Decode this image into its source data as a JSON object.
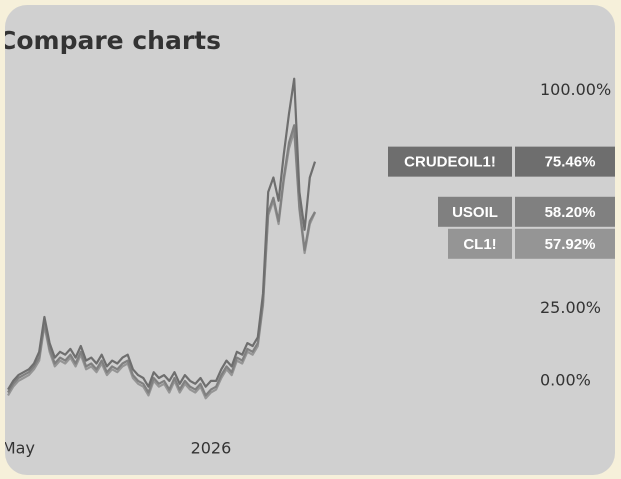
{
  "chart_data": {
    "type": "line",
    "title": "Compare charts",
    "x": [
      0,
      1,
      2,
      3,
      4,
      5,
      6,
      7,
      8,
      9,
      10,
      11,
      12,
      13,
      14,
      15,
      16,
      17,
      18,
      19,
      20,
      21,
      22,
      23,
      24,
      25,
      26,
      27,
      28,
      29,
      30,
      31,
      32,
      33,
      34,
      35,
      36,
      37,
      38,
      39,
      40,
      41,
      42,
      43,
      44,
      45,
      46,
      47,
      48,
      49,
      50,
      51,
      52,
      53,
      54,
      55,
      56,
      57,
      58,
      59
    ],
    "xticks": [
      {
        "value": 2,
        "label": "May"
      },
      {
        "value": 39,
        "label": "2026"
      }
    ],
    "xlim": [
      0,
      59
    ],
    "ylim": [
      -20,
      107
    ],
    "yticks": [
      {
        "value": 0,
        "label": "0.00%"
      },
      {
        "value": 25,
        "label": "25.00%"
      },
      {
        "value": 100,
        "label": "100.00%"
      }
    ],
    "series": [
      {
        "name": "CRUDEOIL1!",
        "color": "#6e6e6e",
        "values": [
          -3,
          0,
          2,
          3,
          4,
          6,
          10,
          22,
          13,
          8,
          10,
          9,
          11,
          8,
          12,
          7,
          8,
          6,
          9,
          5,
          7,
          6,
          8,
          9,
          4,
          2,
          1,
          -2,
          3,
          1,
          2,
          0,
          3,
          -1,
          2,
          0,
          -1,
          1,
          -2,
          0,
          0,
          4,
          7,
          5,
          10,
          9,
          13,
          12,
          15,
          30,
          65,
          70,
          62,
          78,
          92,
          104,
          65,
          52,
          70,
          75.46
        ],
        "value_labels": [
          null,
          null,
          null,
          null,
          null,
          null,
          null,
          null,
          null,
          null,
          null,
          null,
          null,
          null,
          null,
          null,
          null,
          null,
          null,
          null,
          null,
          null,
          null,
          null,
          null,
          null,
          null,
          null,
          null,
          null,
          null,
          null,
          null,
          null,
          null,
          null,
          null,
          null,
          null,
          null,
          null,
          null,
          null,
          null,
          null,
          null,
          null,
          null,
          null,
          null,
          null,
          null,
          null,
          null,
          null,
          null,
          null,
          null,
          null,
          "75.46%"
        ]
      },
      {
        "name": "USOIL",
        "color": "#808080",
        "values": [
          -4,
          -1,
          1,
          2,
          3,
          5,
          8,
          20,
          11,
          6,
          8,
          7,
          9,
          6,
          10,
          5,
          6,
          4,
          7,
          3,
          5,
          4,
          6,
          7,
          2,
          0,
          -1,
          -4,
          1,
          -1,
          0,
          -3,
          1,
          -3,
          0,
          -2,
          -3,
          -1,
          -5,
          -3,
          -2,
          2,
          5,
          3,
          8,
          7,
          11,
          10,
          13,
          27,
          58,
          63,
          55,
          70,
          82,
          88,
          60,
          45,
          55,
          58.2
        ],
        "value_labels": [
          null,
          null,
          null,
          null,
          null,
          null,
          null,
          null,
          null,
          null,
          null,
          null,
          null,
          null,
          null,
          null,
          null,
          null,
          null,
          null,
          null,
          null,
          null,
          null,
          null,
          null,
          null,
          null,
          null,
          null,
          null,
          null,
          null,
          null,
          null,
          null,
          null,
          null,
          null,
          null,
          null,
          null,
          null,
          null,
          null,
          null,
          null,
          null,
          null,
          null,
          null,
          null,
          null,
          null,
          null,
          null,
          null,
          null,
          null,
          "58.20%"
        ]
      },
      {
        "name": "CL1!",
        "color": "#959595",
        "values": [
          -5,
          -2,
          0,
          1,
          2,
          4,
          7,
          19,
          10,
          5,
          7,
          6,
          8,
          5,
          9,
          4,
          5,
          3,
          6,
          2,
          4,
          3,
          5,
          6,
          1,
          -1,
          -2,
          -5,
          0,
          -2,
          -1,
          -4,
          0,
          -4,
          -1,
          -3,
          -4,
          -2,
          -6,
          -4,
          -3,
          1,
          4,
          2,
          7,
          6,
          10,
          9,
          12,
          26,
          57,
          62,
          54,
          69,
          80,
          86,
          59,
          44,
          54,
          57.92
        ],
        "value_labels": [
          null,
          null,
          null,
          null,
          null,
          null,
          null,
          null,
          null,
          null,
          null,
          null,
          null,
          null,
          null,
          null,
          null,
          null,
          null,
          null,
          null,
          null,
          null,
          null,
          null,
          null,
          null,
          null,
          null,
          null,
          null,
          null,
          null,
          null,
          null,
          null,
          null,
          null,
          null,
          null,
          null,
          null,
          null,
          null,
          null,
          null,
          null,
          null,
          null,
          null,
          null,
          null,
          null,
          null,
          null,
          null,
          null,
          null,
          null,
          "57.92%"
        ]
      }
    ]
  }
}
